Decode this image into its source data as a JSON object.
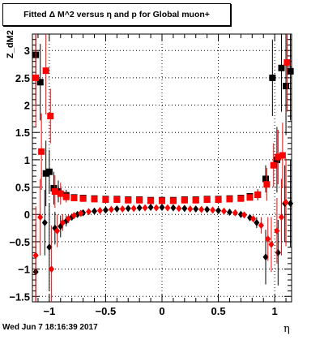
{
  "title": "Fitted Δ M^2 versus η and p for Global muon+",
  "footer": "Wed Jun  7 18:16:39 2017",
  "chart_data": {
    "type": "scatter",
    "title": "Fitted Δ M^2 versus η and p for Global muon+",
    "xlabel": "η",
    "ylabel": "Z_dM2",
    "xlim": [
      -1.15,
      1.15
    ],
    "ylim": [
      -1.6,
      3.3
    ],
    "grid": true,
    "x_ticks": [
      "−1",
      "−0.5",
      "0",
      "0.5",
      "1"
    ],
    "y_ticks": [
      "−1.5",
      "−1",
      "−0.5",
      "0",
      "0.5",
      "1",
      "1.5",
      "2",
      "2.5",
      "3"
    ],
    "colors": {
      "black_series": "#000000",
      "red_series": "#ff0000"
    },
    "series": [
      {
        "marker": "square",
        "color": "#000000",
        "points": [
          {
            "x": -1.12,
            "y": 2.92,
            "err": 0.9
          },
          {
            "x": -1.08,
            "y": 2.42,
            "err": 0.7
          },
          {
            "x": -1.03,
            "y": 0.75,
            "err": 0.6
          },
          {
            "x": -1.0,
            "y": 0.78,
            "err": 0.4
          },
          {
            "x": -0.96,
            "y": 0.48,
            "err": 0.3
          },
          {
            "x": -0.92,
            "y": 0.42,
            "err": 0.2
          },
          {
            "x": -0.85,
            "y": 0.35,
            "err": 0.1
          },
          {
            "x": -0.78,
            "y": 0.31,
            "err": 0.05
          },
          {
            "x": -0.7,
            "y": 0.3,
            "err": 0.04
          },
          {
            "x": -0.6,
            "y": 0.29,
            "err": 0.03
          },
          {
            "x": -0.5,
            "y": 0.28,
            "err": 0.03
          },
          {
            "x": -0.4,
            "y": 0.28,
            "err": 0.03
          },
          {
            "x": -0.3,
            "y": 0.27,
            "err": 0.03
          },
          {
            "x": -0.2,
            "y": 0.27,
            "err": 0.03
          },
          {
            "x": -0.1,
            "y": 0.26,
            "err": 0.03
          },
          {
            "x": 0.0,
            "y": 0.26,
            "err": 0.03
          },
          {
            "x": 0.1,
            "y": 0.26,
            "err": 0.03
          },
          {
            "x": 0.2,
            "y": 0.27,
            "err": 0.03
          },
          {
            "x": 0.3,
            "y": 0.27,
            "err": 0.03
          },
          {
            "x": 0.4,
            "y": 0.28,
            "err": 0.03
          },
          {
            "x": 0.5,
            "y": 0.28,
            "err": 0.03
          },
          {
            "x": 0.6,
            "y": 0.29,
            "err": 0.03
          },
          {
            "x": 0.7,
            "y": 0.3,
            "err": 0.04
          },
          {
            "x": 0.78,
            "y": 0.33,
            "err": 0.05
          },
          {
            "x": 0.85,
            "y": 0.36,
            "err": 0.1
          },
          {
            "x": 0.92,
            "y": 0.65,
            "err": 0.25
          },
          {
            "x": 0.98,
            "y": 2.5,
            "err": 0.7
          },
          {
            "x": 1.02,
            "y": 1.0,
            "err": 0.6
          },
          {
            "x": 1.06,
            "y": 2.68,
            "err": 0.8
          },
          {
            "x": 1.1,
            "y": 2.35,
            "err": 0.9
          },
          {
            "x": 1.14,
            "y": 2.62,
            "err": 0.9
          }
        ]
      },
      {
        "marker": "square",
        "color": "#ff0000",
        "points": [
          {
            "x": -1.12,
            "y": 2.5,
            "err": 0.9
          },
          {
            "x": -1.07,
            "y": 1.15,
            "err": 0.7
          },
          {
            "x": -1.03,
            "y": 2.63,
            "err": 0.8
          },
          {
            "x": -0.99,
            "y": 1.8,
            "err": 0.5
          },
          {
            "x": -0.95,
            "y": 0.42,
            "err": 0.3
          },
          {
            "x": -0.9,
            "y": 0.38,
            "err": 0.2
          },
          {
            "x": -0.85,
            "y": 0.32,
            "err": 0.1
          },
          {
            "x": -0.78,
            "y": 0.3,
            "err": 0.05
          },
          {
            "x": -0.7,
            "y": 0.29,
            "err": 0.04
          },
          {
            "x": -0.6,
            "y": 0.28,
            "err": 0.03
          },
          {
            "x": -0.5,
            "y": 0.27,
            "err": 0.03
          },
          {
            "x": -0.4,
            "y": 0.27,
            "err": 0.03
          },
          {
            "x": -0.3,
            "y": 0.26,
            "err": 0.03
          },
          {
            "x": -0.2,
            "y": 0.26,
            "err": 0.03
          },
          {
            "x": -0.1,
            "y": 0.25,
            "err": 0.03
          },
          {
            "x": 0.0,
            "y": 0.25,
            "err": 0.03
          },
          {
            "x": 0.1,
            "y": 0.25,
            "err": 0.03
          },
          {
            "x": 0.2,
            "y": 0.26,
            "err": 0.03
          },
          {
            "x": 0.3,
            "y": 0.26,
            "err": 0.03
          },
          {
            "x": 0.4,
            "y": 0.27,
            "err": 0.03
          },
          {
            "x": 0.5,
            "y": 0.27,
            "err": 0.03
          },
          {
            "x": 0.6,
            "y": 0.28,
            "err": 0.03
          },
          {
            "x": 0.7,
            "y": 0.29,
            "err": 0.04
          },
          {
            "x": 0.78,
            "y": 0.31,
            "err": 0.05
          },
          {
            "x": 0.85,
            "y": 0.36,
            "err": 0.1
          },
          {
            "x": 0.93,
            "y": 0.55,
            "err": 0.3
          },
          {
            "x": 0.99,
            "y": 0.9,
            "err": 0.4
          },
          {
            "x": 1.03,
            "y": 1.05,
            "err": 0.5
          },
          {
            "x": 1.07,
            "y": 1.08,
            "err": 0.6
          },
          {
            "x": 1.11,
            "y": 2.78,
            "err": 0.9
          }
        ]
      },
      {
        "marker": "diamond",
        "color": "#000000",
        "points": [
          {
            "x": -1.12,
            "y": -1.05,
            "err": 0.9
          },
          {
            "x": -1.04,
            "y": -0.15,
            "err": 0.6
          },
          {
            "x": -1.0,
            "y": -0.6,
            "err": 0.8
          },
          {
            "x": -0.95,
            "y": -0.25,
            "err": 0.3
          },
          {
            "x": -0.9,
            "y": -0.22,
            "err": 0.2
          },
          {
            "x": -0.85,
            "y": -0.12,
            "err": 0.1
          },
          {
            "x": -0.8,
            "y": -0.05,
            "err": 0.05
          },
          {
            "x": -0.75,
            "y": 0.0,
            "err": 0.04
          },
          {
            "x": -0.7,
            "y": 0.03,
            "err": 0.03
          },
          {
            "x": -0.6,
            "y": 0.06,
            "err": 0.03
          },
          {
            "x": -0.5,
            "y": 0.08,
            "err": 0.03
          },
          {
            "x": -0.4,
            "y": 0.1,
            "err": 0.03
          },
          {
            "x": -0.3,
            "y": 0.11,
            "err": 0.03
          },
          {
            "x": -0.2,
            "y": 0.12,
            "err": 0.03
          },
          {
            "x": -0.1,
            "y": 0.13,
            "err": 0.03
          },
          {
            "x": 0.0,
            "y": 0.13,
            "err": 0.03
          },
          {
            "x": 0.1,
            "y": 0.12,
            "err": 0.03
          },
          {
            "x": 0.2,
            "y": 0.11,
            "err": 0.03
          },
          {
            "x": 0.3,
            "y": 0.1,
            "err": 0.03
          },
          {
            "x": 0.4,
            "y": 0.09,
            "err": 0.03
          },
          {
            "x": 0.5,
            "y": 0.07,
            "err": 0.03
          },
          {
            "x": 0.6,
            "y": 0.04,
            "err": 0.03
          },
          {
            "x": 0.7,
            "y": 0.0,
            "err": 0.04
          },
          {
            "x": 0.78,
            "y": -0.06,
            "err": 0.05
          },
          {
            "x": 0.84,
            "y": -0.15,
            "err": 0.1
          },
          {
            "x": 0.92,
            "y": -0.78,
            "err": 0.5
          },
          {
            "x": 1.03,
            "y": -0.7,
            "err": 0.6
          },
          {
            "x": 1.09,
            "y": 0.2,
            "err": 0.7
          },
          {
            "x": 1.14,
            "y": 0.2,
            "err": 0.8
          }
        ]
      },
      {
        "marker": "diamond",
        "color": "#ff0000",
        "points": [
          {
            "x": -1.12,
            "y": -0.75,
            "err": 0.9
          },
          {
            "x": -1.08,
            "y": -0.05,
            "err": 0.7
          },
          {
            "x": -0.98,
            "y": -1.0,
            "err": 0.8
          },
          {
            "x": -0.93,
            "y": -0.3,
            "err": 0.3
          },
          {
            "x": -0.88,
            "y": -0.15,
            "err": 0.15
          },
          {
            "x": -0.83,
            "y": -0.08,
            "err": 0.08
          },
          {
            "x": -0.78,
            "y": -0.02,
            "err": 0.05
          },
          {
            "x": -0.72,
            "y": 0.02,
            "err": 0.04
          },
          {
            "x": -0.65,
            "y": 0.05,
            "err": 0.03
          },
          {
            "x": -0.55,
            "y": 0.07,
            "err": 0.03
          },
          {
            "x": -0.45,
            "y": 0.09,
            "err": 0.03
          },
          {
            "x": -0.35,
            "y": 0.1,
            "err": 0.03
          },
          {
            "x": -0.25,
            "y": 0.11,
            "err": 0.03
          },
          {
            "x": -0.15,
            "y": 0.12,
            "err": 0.03
          },
          {
            "x": -0.05,
            "y": 0.12,
            "err": 0.03
          },
          {
            "x": 0.05,
            "y": 0.12,
            "err": 0.03
          },
          {
            "x": 0.15,
            "y": 0.11,
            "err": 0.03
          },
          {
            "x": 0.25,
            "y": 0.1,
            "err": 0.03
          },
          {
            "x": 0.35,
            "y": 0.09,
            "err": 0.03
          },
          {
            "x": 0.45,
            "y": 0.08,
            "err": 0.03
          },
          {
            "x": 0.55,
            "y": 0.06,
            "err": 0.03
          },
          {
            "x": 0.65,
            "y": 0.03,
            "err": 0.03
          },
          {
            "x": 0.73,
            "y": -0.01,
            "err": 0.04
          },
          {
            "x": 0.81,
            "y": -0.08,
            "err": 0.06
          },
          {
            "x": 0.88,
            "y": -0.2,
            "err": 0.15
          },
          {
            "x": 0.94,
            "y": -0.45,
            "err": 0.4
          },
          {
            "x": 0.97,
            "y": -0.55,
            "err": 0.5
          },
          {
            "x": 1.02,
            "y": -0.3,
            "err": 0.6
          },
          {
            "x": 1.06,
            "y": -0.05,
            "err": 0.7
          },
          {
            "x": 1.1,
            "y": 0.22,
            "err": 0.8
          }
        ]
      }
    ]
  }
}
